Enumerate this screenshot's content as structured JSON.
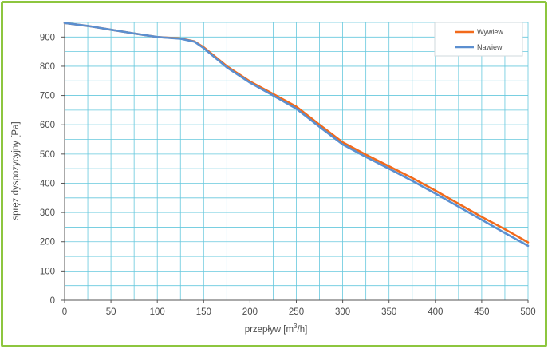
{
  "chart_data": {
    "type": "line",
    "xlabel": "przepływ [m",
    "xlabel_sup": "3",
    "xlabel_end": "/h]",
    "ylabel": "spręż dyspozycyjny [Pa]",
    "xlim": [
      0,
      500
    ],
    "ylim": [
      0,
      950
    ],
    "x_ticks": [
      "0",
      "50",
      "100",
      "150",
      "200",
      "250",
      "300",
      "350",
      "400",
      "450",
      "500"
    ],
    "y_ticks": [
      "0",
      "100",
      "200",
      "300",
      "400",
      "500",
      "600",
      "700",
      "800",
      "900"
    ],
    "grid": true,
    "legend_position": "top-right",
    "series": [
      {
        "name": "Wywiew",
        "color": "#f26a1b",
        "x": [
          0,
          25,
          50,
          75,
          100,
          125,
          140,
          150,
          175,
          200,
          225,
          250,
          275,
          300,
          325,
          350,
          375,
          400,
          425,
          450,
          475,
          500
        ],
        "y": [
          948,
          938,
          925,
          912,
          900,
          895,
          885,
          865,
          800,
          748,
          705,
          662,
          600,
          540,
          498,
          458,
          418,
          375,
          330,
          285,
          243,
          198
        ]
      },
      {
        "name": "Nawiew",
        "color": "#5b8fd0",
        "x": [
          0,
          25,
          50,
          75,
          100,
          125,
          140,
          150,
          175,
          200,
          225,
          250,
          275,
          300,
          325,
          350,
          375,
          400,
          425,
          450,
          475,
          500
        ],
        "y": [
          948,
          938,
          925,
          912,
          900,
          894,
          884,
          862,
          796,
          744,
          700,
          655,
          593,
          533,
          490,
          450,
          408,
          365,
          320,
          275,
          230,
          186
        ]
      }
    ]
  }
}
